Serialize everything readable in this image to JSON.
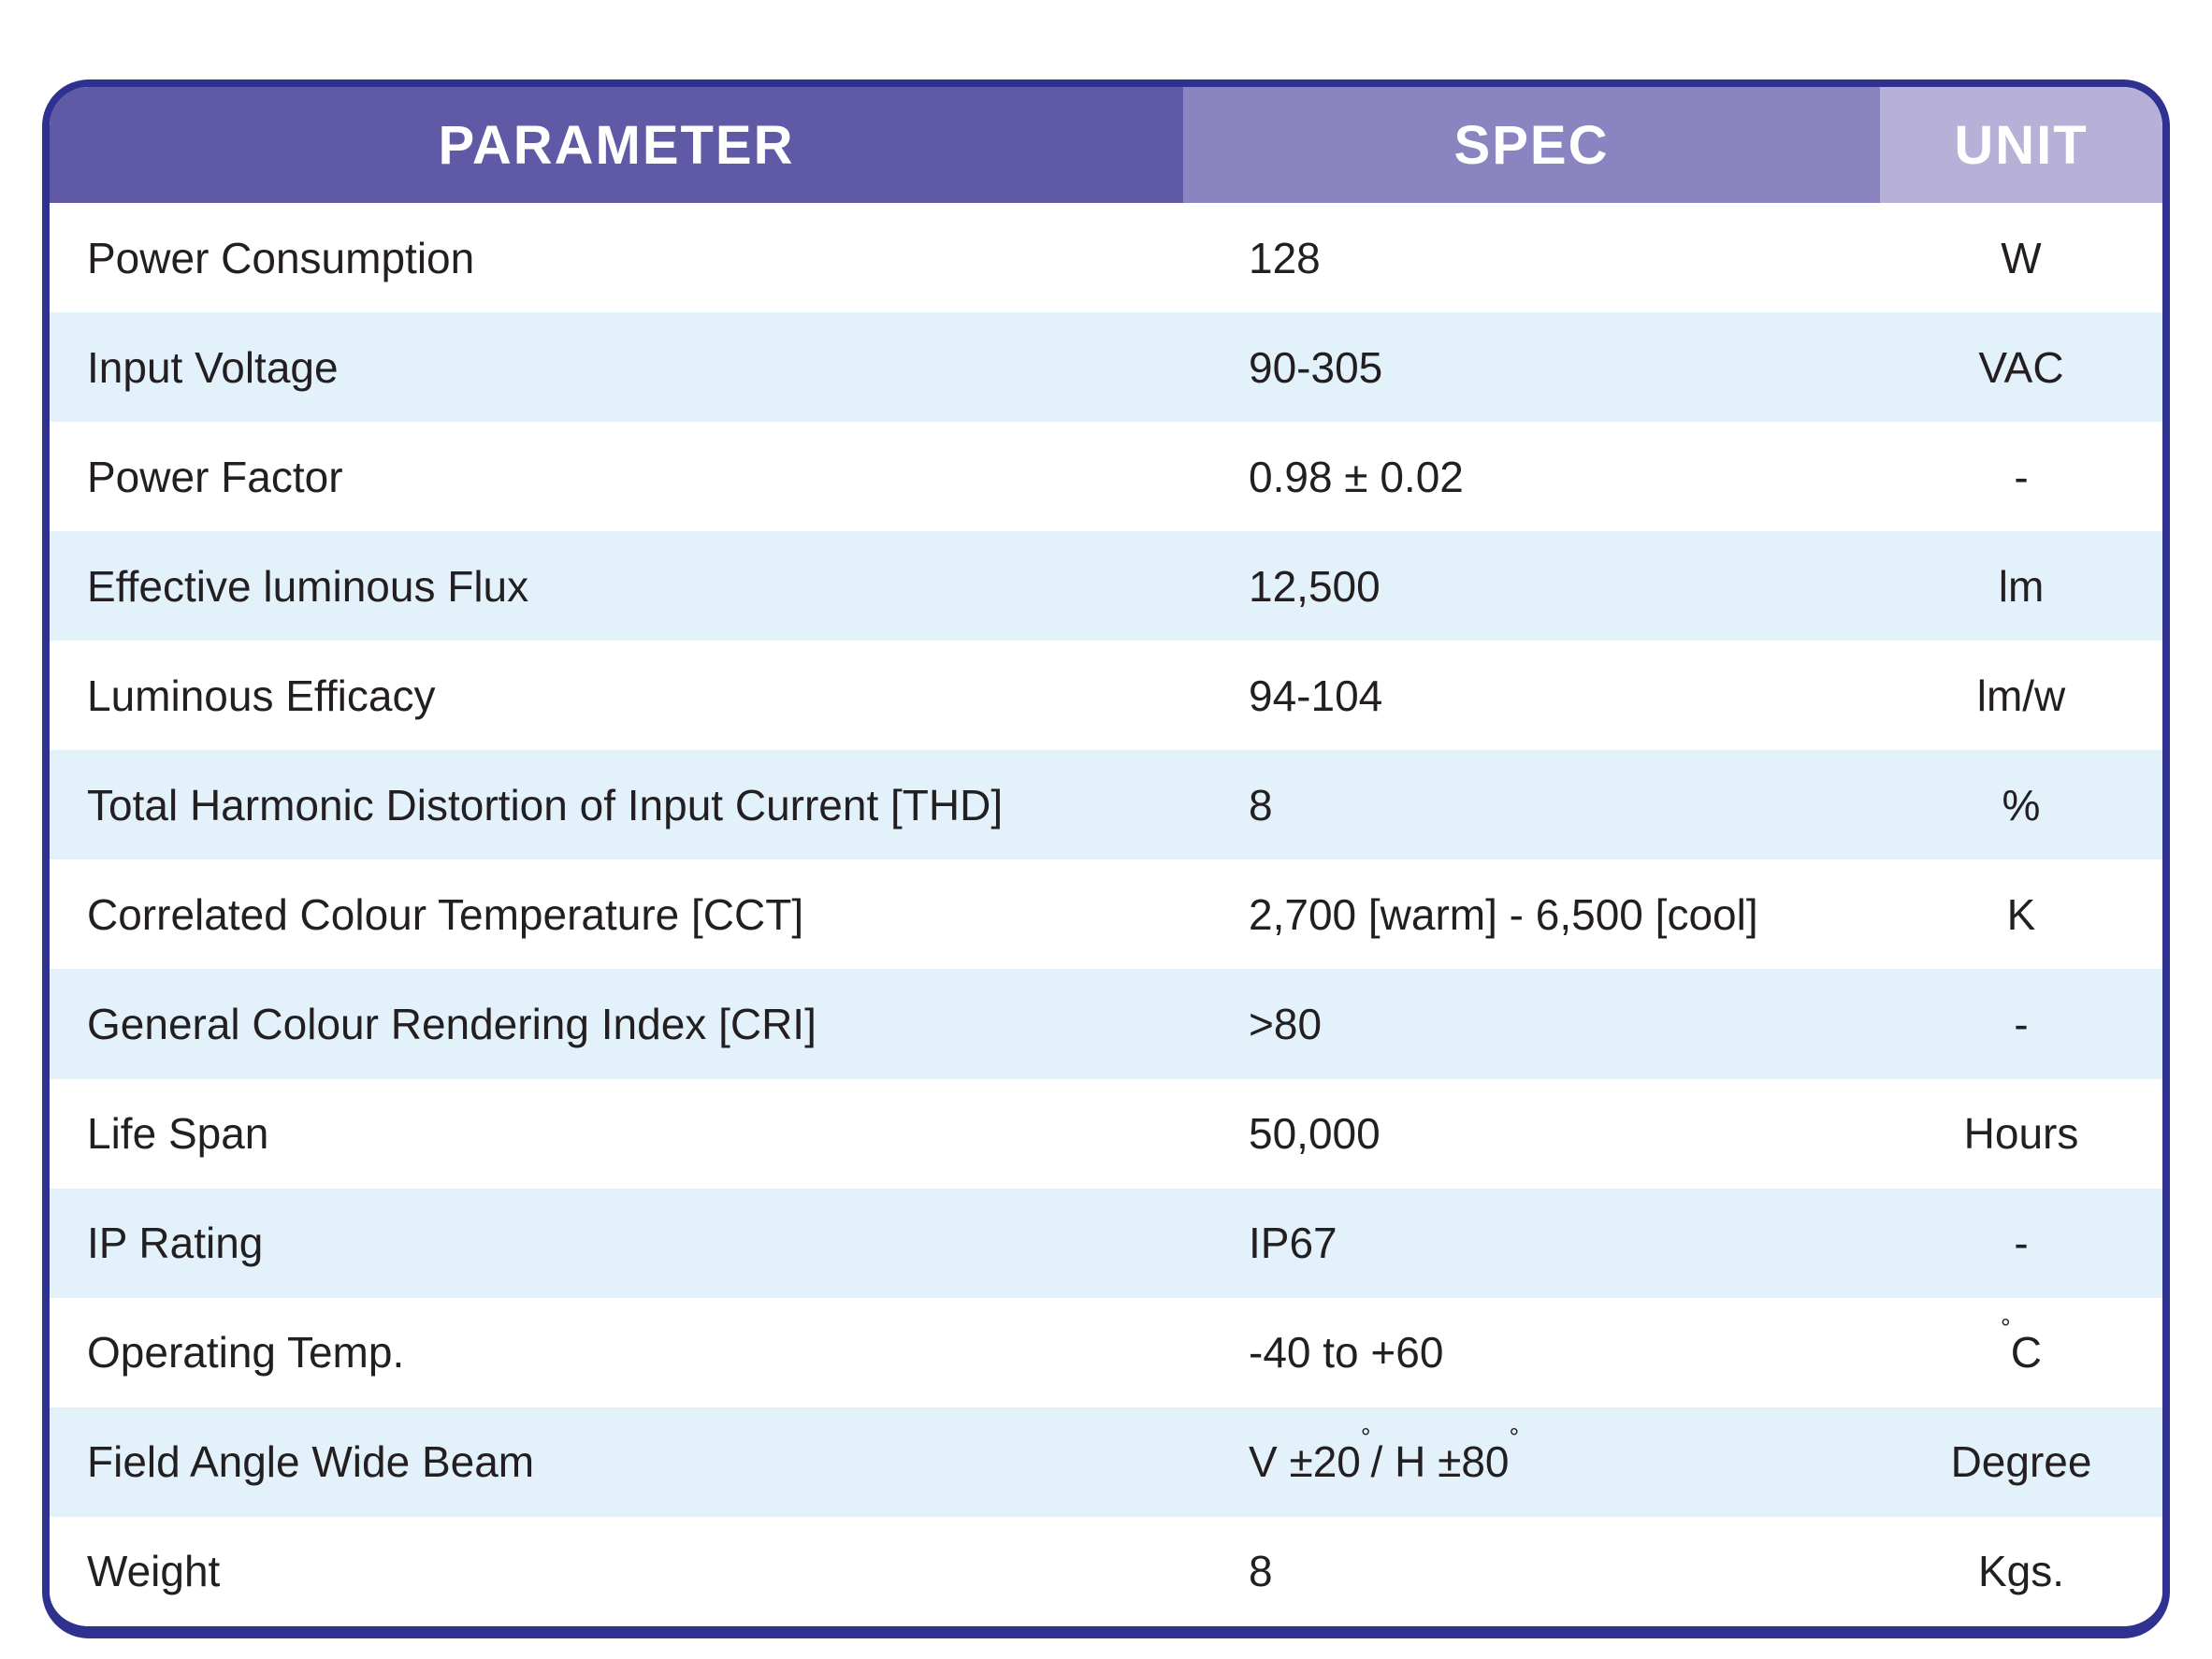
{
  "table": {
    "headers": {
      "parameter": "PARAMETER",
      "spec": "SPEC",
      "unit": "UNIT"
    },
    "rows": [
      {
        "parameter": "Power Consumption",
        "spec": "128",
        "unit": "W"
      },
      {
        "parameter": "Input Voltage",
        "spec": "90-305",
        "unit": "VAC"
      },
      {
        "parameter": "Power Factor",
        "spec": "0.98 ± 0.02",
        "unit": "-"
      },
      {
        "parameter": "Effective luminous Flux",
        "spec": "12,500",
        "unit": "lm"
      },
      {
        "parameter": "Luminous Efficacy",
        "spec": "94-104",
        "unit": "lm/w"
      },
      {
        "parameter": "Total Harmonic Distortion of Input Current [THD]",
        "spec": "8",
        "unit": "%"
      },
      {
        "parameter": "Correlated Colour Temperature [CCT]",
        "spec": "2,700 [warm] - 6,500 [cool]",
        "unit": "K"
      },
      {
        "parameter": "General Colour Rendering Index [CRI]",
        "spec": ">80",
        "unit": "-"
      },
      {
        "parameter": "Life Span",
        "spec": "50,000",
        "unit": "Hours"
      },
      {
        "parameter": "IP Rating",
        "spec": "IP67",
        "unit": "-"
      },
      {
        "parameter": "Operating Temp.",
        "spec": "-40 to +60",
        "unit": "°C"
      },
      {
        "parameter": "Field Angle Wide Beam",
        "spec": "V ±20°/ H ±80°",
        "unit": "Degree"
      },
      {
        "parameter": "Weight",
        "spec": "8",
        "unit": "Kgs."
      }
    ]
  },
  "colors": {
    "border": "#2f3190",
    "header-parameter-bg": "#605aa6",
    "header-spec-bg": "#8a84c0",
    "header-unit-bg": "#b7b1d8",
    "row-alt-bg": "#e3f1fb",
    "row-bg": "#ffffff",
    "text": "#231f20",
    "header-text": "#ffffff"
  },
  "chart_data": {
    "type": "table",
    "columns": [
      "PARAMETER",
      "SPEC",
      "UNIT"
    ],
    "rows": [
      [
        "Power Consumption",
        "128",
        "W"
      ],
      [
        "Input Voltage",
        "90-305",
        "VAC"
      ],
      [
        "Power Factor",
        "0.98 ± 0.02",
        "-"
      ],
      [
        "Effective luminous Flux",
        "12,500",
        "lm"
      ],
      [
        "Luminous Efficacy",
        "94-104",
        "lm/w"
      ],
      [
        "Total Harmonic Distortion of Input Current [THD]",
        "8",
        "%"
      ],
      [
        "Correlated Colour Temperature [CCT]",
        "2,700 [warm] - 6,500 [cool]",
        "K"
      ],
      [
        "General Colour Rendering Index [CRI]",
        ">80",
        "-"
      ],
      [
        "Life Span",
        "50,000",
        "Hours"
      ],
      [
        "IP Rating",
        "IP67",
        "-"
      ],
      [
        "Operating Temp.",
        "-40 to +60",
        "°C"
      ],
      [
        "Field Angle Wide Beam",
        "V ±20°/ H ±80°",
        "Degree"
      ],
      [
        "Weight",
        "8",
        "Kgs."
      ]
    ]
  }
}
